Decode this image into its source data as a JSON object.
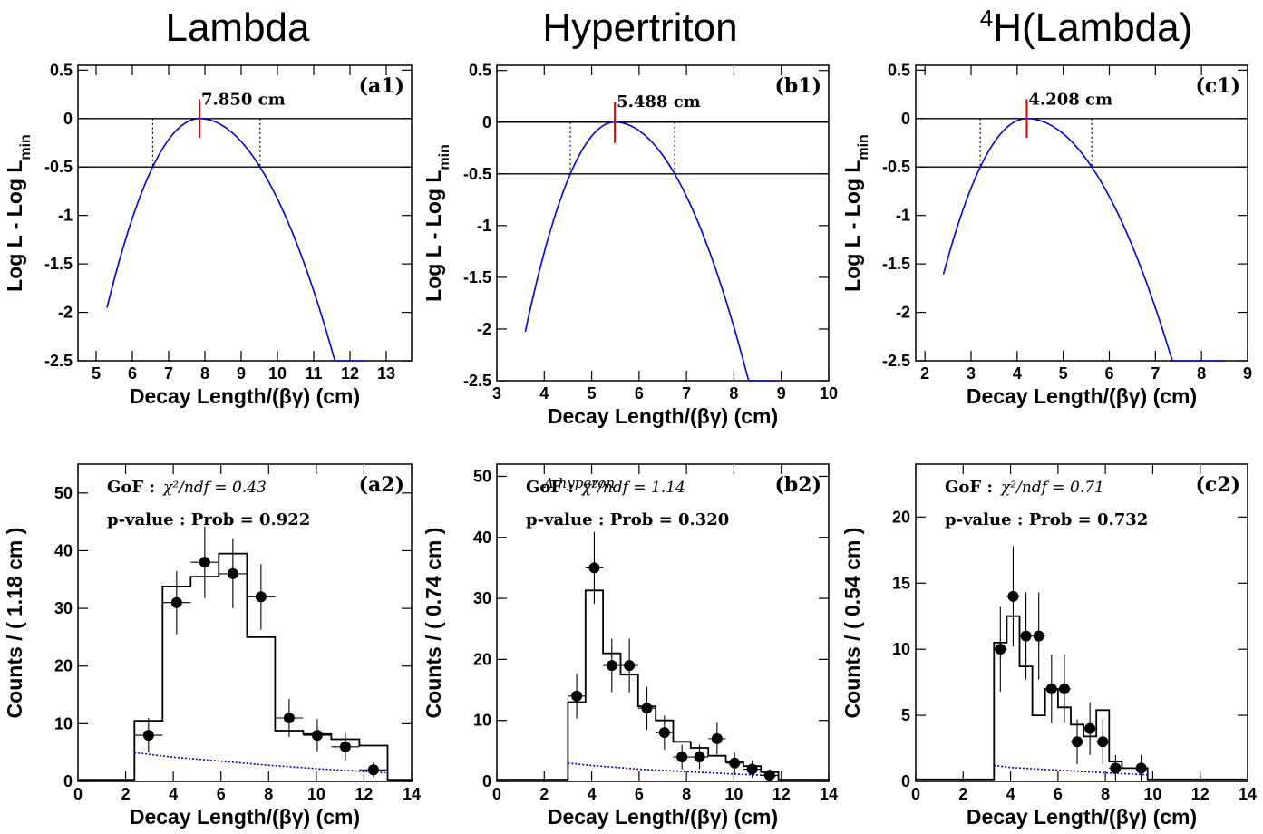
{
  "column_titles": {
    "col1": "Lambda",
    "col2": "Hypertriton",
    "col3_sup": "4",
    "col3_main": "H(Lambda)"
  },
  "chart_data": [
    {
      "type": "line",
      "panel_tag": "(a1)",
      "xlabel": "Decay Length/(βγ) (cm)",
      "ylabel": "Log L - Log L",
      "ylabel_sub": "min",
      "xlim": [
        4.5,
        13.7
      ],
      "ylim": [
        -2.5,
        0.55
      ],
      "xticks": [
        "5",
        "6",
        "7",
        "8",
        "9",
        "10",
        "11",
        "12",
        "13"
      ],
      "yticks": [
        "0.5",
        "0",
        "-0.5",
        "-1",
        "-1.5",
        "-2",
        "-2.5"
      ],
      "best_fit": 7.85,
      "best_fit_label": "7.850 cm",
      "interval": [
        6.56,
        9.52
      ],
      "curve_range": [
        5.3,
        12.4
      ],
      "hlines": [
        0,
        -0.5
      ]
    },
    {
      "type": "line",
      "panel_tag": "(b1)",
      "xlabel": "Decay Length/(βγ) (cm)",
      "ylabel": "Log L - Log L",
      "ylabel_sub": "min",
      "xlim": [
        3,
        10
      ],
      "ylim": [
        -2.5,
        0.55
      ],
      "xticks": [
        "3",
        "4",
        "5",
        "6",
        "7",
        "8",
        "9",
        "10"
      ],
      "yticks": [
        "0.5",
        "0",
        "-0.5",
        "-1",
        "-1.5",
        "-2",
        "-2.5"
      ],
      "best_fit": 5.488,
      "best_fit_label": "5.488 cm",
      "interval": [
        4.55,
        6.75
      ],
      "curve_range": [
        3.6,
        8.9
      ],
      "hlines": [
        0,
        -0.5
      ]
    },
    {
      "type": "line",
      "panel_tag": "(c1)",
      "xlabel": "Decay Length/(βγ) (cm)",
      "ylabel": "Log L - Log L",
      "ylabel_sub": "min",
      "xlim": [
        1.8,
        9
      ],
      "ylim": [
        -2.5,
        0.55
      ],
      "xticks": [
        "2",
        "3",
        "4",
        "5",
        "6",
        "7",
        "8",
        "9"
      ],
      "yticks": [
        "0.5",
        "0",
        "-0.5",
        "-1",
        "-1.5",
        "-2",
        "-2.5"
      ],
      "best_fit": 4.208,
      "best_fit_label": "4.208 cm",
      "interval": [
        3.2,
        5.62
      ],
      "curve_range": [
        2.4,
        8.5
      ],
      "hlines": [
        0,
        -0.5
      ]
    },
    {
      "type": "bar",
      "panel_tag": "(a2)",
      "xlabel": "Decay Length/(βγ) (cm)",
      "ylabel": "Counts / ( 1.18 cm )",
      "xlim": [
        0,
        14
      ],
      "ylim": [
        0,
        55
      ],
      "xticks": [
        "0",
        "2",
        "4",
        "6",
        "8",
        "10",
        "12",
        "14"
      ],
      "yticks": [
        "0",
        "10",
        "20",
        "30",
        "40",
        "50"
      ],
      "gof_label": "GoF :",
      "gof_value": "χ²/ndf = 0.43",
      "pvalue_label": "p-value : Prob = 0.922",
      "bin_width": 1.18,
      "points_x": [
        2.96,
        4.14,
        5.32,
        6.5,
        7.68,
        8.86,
        10.04,
        11.22,
        12.4
      ],
      "points_y": [
        8,
        31,
        38,
        36,
        32,
        11,
        8,
        6,
        2
      ],
      "points_err": [
        3,
        5.5,
        6.2,
        6,
        5.7,
        3.3,
        2.8,
        2.4,
        1.3
      ],
      "fit_edges": [
        0,
        2.37,
        3.55,
        4.73,
        5.91,
        7.09,
        8.27,
        9.45,
        10.63,
        11.81,
        12.99,
        14
      ],
      "fit_values": [
        0.3,
        10.5,
        33.8,
        35.5,
        39.5,
        25,
        8.8,
        8.2,
        7.3,
        6.2,
        0.3
      ],
      "bkg_x": [
        2.37,
        4,
        6,
        8,
        10,
        12.99
      ],
      "bkg_y": [
        5,
        4.2,
        3.5,
        2.8,
        2.2,
        1.5
      ]
    },
    {
      "type": "bar",
      "panel_tag": "(b2)",
      "xlabel": "Decay Length/(βγ) (cm)",
      "ylabel": "Counts / ( 0.74 cm )",
      "xlim": [
        0,
        14
      ],
      "ylim": [
        0,
        52
      ],
      "xticks": [
        "0",
        "2",
        "4",
        "6",
        "8",
        "10",
        "12",
        "14"
      ],
      "yticks": [
        "0",
        "10",
        "20",
        "30",
        "40",
        "50"
      ],
      "gof_label": "GoF :",
      "gof_value": "χ²/ndf = 1.14",
      "overlay_label": "Λ hyperon",
      "pvalue_label": "p-value : Prob = 0.320",
      "bin_width": 0.74,
      "points_x": [
        3.37,
        4.11,
        4.85,
        5.59,
        6.33,
        7.07,
        7.81,
        8.55,
        9.29,
        10.03,
        10.77,
        11.51
      ],
      "points_y": [
        14,
        35,
        19,
        19,
        12,
        8,
        4,
        4,
        7,
        3,
        2,
        1
      ],
      "points_err": [
        3.7,
        5.9,
        4.4,
        4.4,
        3.5,
        2.8,
        2,
        2,
        2.6,
        1.7,
        1.4,
        1
      ],
      "fit_edges": [
        0,
        3,
        3.74,
        4.48,
        5.22,
        5.96,
        6.7,
        7.44,
        8.18,
        8.92,
        9.66,
        10.4,
        11.14,
        11.88,
        14
      ],
      "fit_values": [
        0.3,
        13,
        31.3,
        21,
        17.5,
        12.3,
        10,
        6.5,
        5.5,
        4.2,
        3.2,
        2.5,
        1.5,
        0.3
      ],
      "bkg_x": [
        3,
        4,
        6,
        8,
        10,
        11.88
      ],
      "bkg_y": [
        3,
        2.6,
        2,
        1.6,
        1.2,
        0.9
      ]
    },
    {
      "type": "bar",
      "panel_tag": "(c2)",
      "xlabel": "Decay Length/(βγ) (cm)",
      "ylabel": "Counts / ( 0.54 cm )",
      "xlim": [
        0,
        14
      ],
      "ylim": [
        0,
        24
      ],
      "xticks": [
        "0",
        "2",
        "4",
        "6",
        "8",
        "10",
        "12",
        "14"
      ],
      "yticks": [
        "0",
        "5",
        "10",
        "15",
        "20"
      ],
      "gof_label": "GoF :",
      "gof_value": "χ²/ndf = 0.71",
      "pvalue_label": "p-value : Prob = 0.732",
      "bin_width": 0.54,
      "points_x": [
        3.57,
        4.11,
        4.65,
        5.19,
        5.73,
        6.27,
        6.81,
        7.35,
        7.89,
        8.43,
        9.51
      ],
      "points_y": [
        10,
        14,
        11,
        11,
        7,
        7,
        3,
        4,
        3,
        1,
        1
      ],
      "points_err": [
        3.2,
        3.8,
        3.3,
        3.3,
        2.6,
        2.6,
        1.7,
        2,
        1.7,
        1,
        1
      ],
      "fit_edges": [
        0,
        3.3,
        3.84,
        4.38,
        4.92,
        5.46,
        6,
        6.54,
        7.08,
        7.62,
        8.16,
        8.7,
        9.24,
        9.78,
        14
      ],
      "fit_values": [
        0.15,
        10.5,
        12.5,
        8.7,
        5,
        7,
        5.6,
        4.3,
        3.4,
        5.4,
        1.5,
        1,
        1,
        0.15
      ],
      "bkg_x": [
        3.3,
        4,
        6,
        8,
        9.78
      ],
      "bkg_y": [
        1.2,
        1.05,
        0.85,
        0.65,
        0.5
      ]
    }
  ]
}
